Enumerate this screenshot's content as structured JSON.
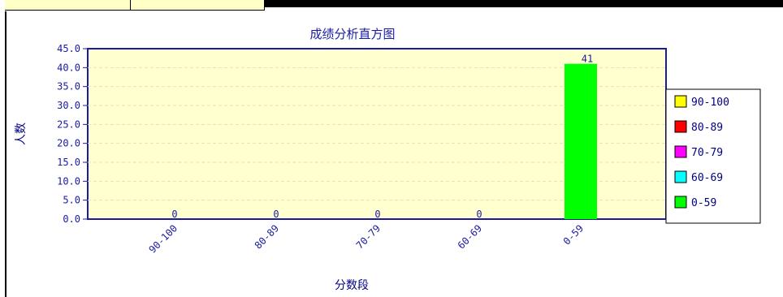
{
  "chart_data": {
    "type": "bar",
    "title": "成绩分析直方图",
    "xlabel": "分数段",
    "ylabel": "人数",
    "categories": [
      "90-100",
      "80-89",
      "70-79",
      "60-69",
      "0-59"
    ],
    "values": [
      0,
      0,
      0,
      0,
      41
    ],
    "colors": [
      "#ffff00",
      "#ff0000",
      "#ff00ff",
      "#00ffff",
      "#00ff00"
    ],
    "ylim": [
      0,
      45
    ],
    "yticks": [
      "0.0",
      "5.0",
      "10.0",
      "15.0",
      "20.0",
      "25.0",
      "30.0",
      "35.0",
      "40.0",
      "45.0"
    ],
    "grid": true,
    "plot_background": "#ffffd0",
    "legend": {
      "placement": "right",
      "entries": [
        "90-100",
        "80-89",
        "70-79",
        "60-69",
        "0-59"
      ]
    }
  }
}
